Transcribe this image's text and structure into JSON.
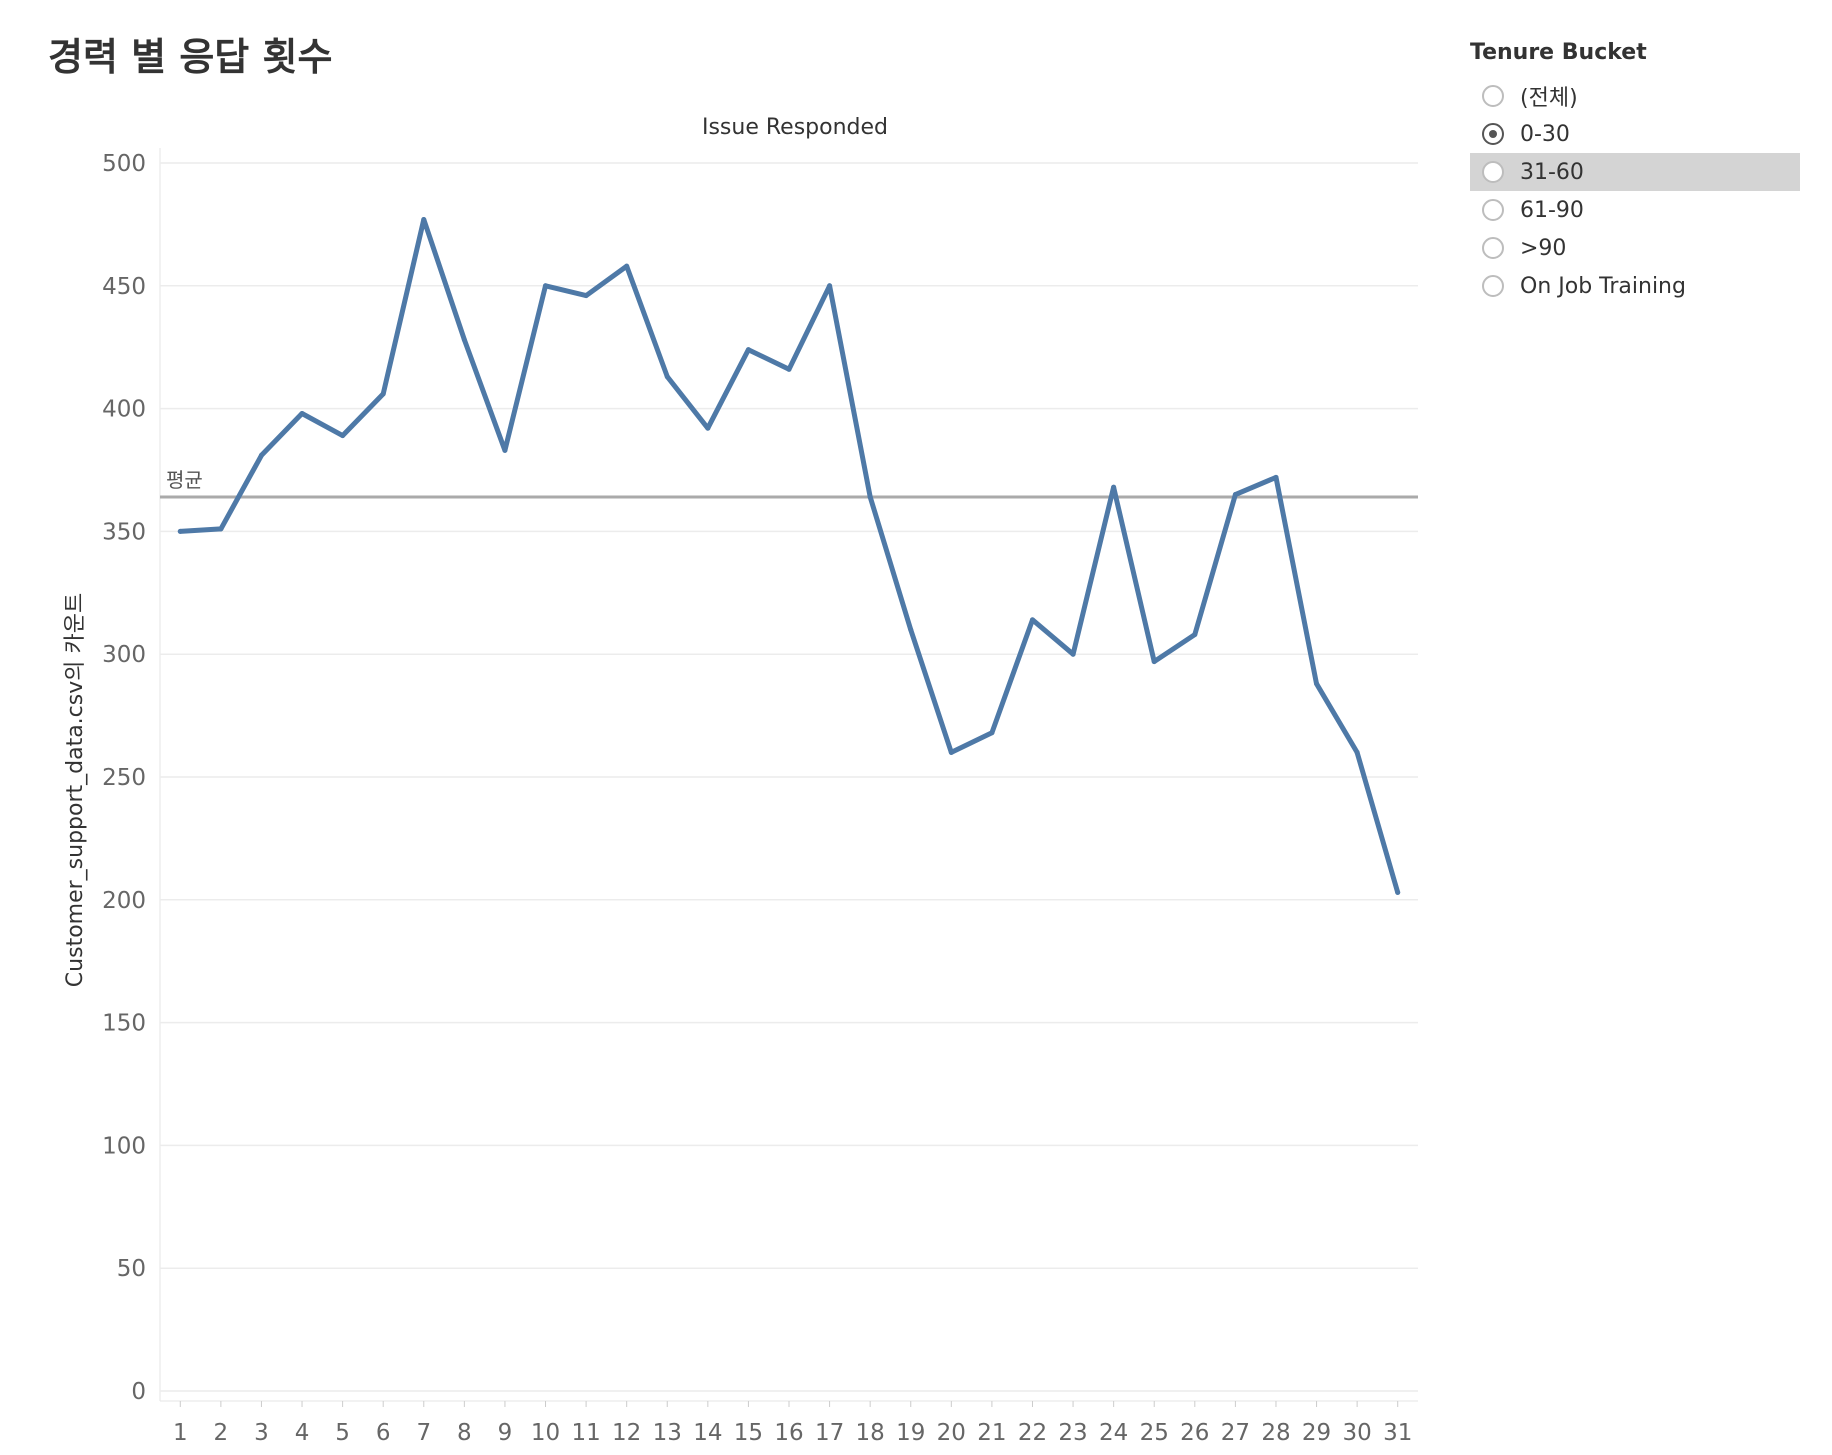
{
  "title": "경력 별 응답 횟수",
  "filter": {
    "title": "Tenure Bucket",
    "options": [
      {
        "label": "(전체)",
        "checked": false
      },
      {
        "label": "0-30",
        "checked": true
      },
      {
        "label": "31-60",
        "checked": false,
        "highlighted": true
      },
      {
        "label": "61-90",
        "checked": false
      },
      {
        "label": ">90",
        "checked": false
      },
      {
        "label": "On Job Training",
        "checked": false
      }
    ]
  },
  "chart_data": {
    "type": "line",
    "column_header": "Issue Responded",
    "ylabel": "Customer_support_data.csv의 카운트",
    "xlabel": "",
    "categories": [
      1,
      2,
      3,
      4,
      5,
      6,
      7,
      8,
      9,
      10,
      11,
      12,
      13,
      14,
      15,
      16,
      17,
      18,
      19,
      20,
      21,
      22,
      23,
      24,
      25,
      26,
      27,
      28,
      29,
      30,
      31
    ],
    "series": [
      {
        "values": [
          350,
          351,
          381,
          398,
          389,
          406,
          477,
          428,
          383,
          450,
          446,
          458,
          413,
          392,
          424,
          416,
          450,
          364,
          310,
          260,
          268,
          314,
          300,
          368,
          297,
          308,
          365,
          372,
          288,
          260,
          203
        ]
      }
    ],
    "ylim": [
      0,
      500
    ],
    "yticks": [
      0,
      50,
      100,
      150,
      200,
      250,
      300,
      350,
      400,
      450,
      500
    ],
    "reference_line": {
      "label": "평균",
      "value": 364
    },
    "grid": true,
    "line_color": "#4e79a7",
    "reference_color": "#aaaaaa"
  }
}
